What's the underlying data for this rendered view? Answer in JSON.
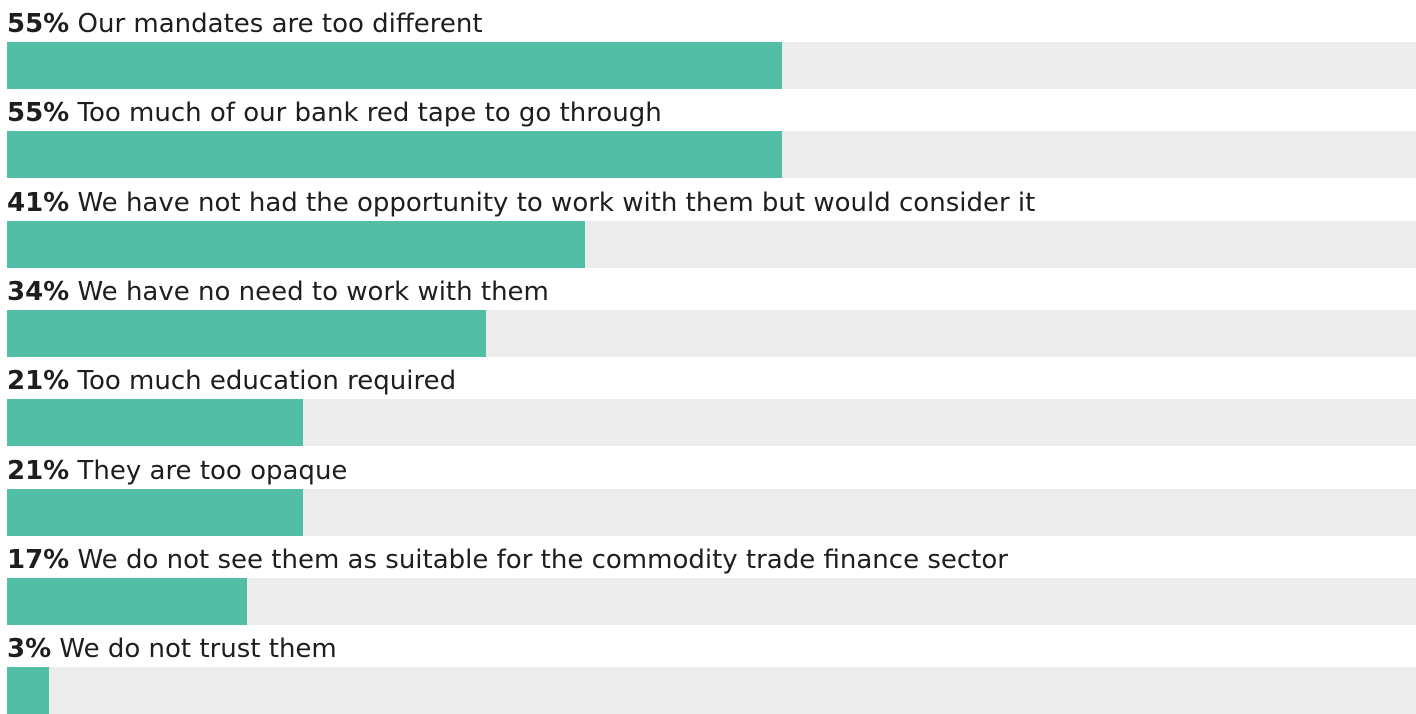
{
  "chart_data": {
    "type": "bar",
    "orientation": "horizontal",
    "value_suffix": "%",
    "xlim": [
      0,
      100
    ],
    "bar_color": "#52bea5",
    "track_color": "#ececec",
    "grid": false,
    "legend": "none",
    "categories": [
      "Our mandates are too different",
      "Too much of our bank red tape to go through",
      "We have not had the opportunity to work with them but would consider it",
      "We have no need to work with them",
      "Too much education required",
      "They are too opaque",
      "We do not see them as suitable for the commodity trade finance sector",
      "We do not trust them"
    ],
    "values": [
      55,
      55,
      41,
      34,
      21,
      21,
      17,
      3
    ],
    "value_labels": [
      "55%",
      "55%",
      "41%",
      "34%",
      "21%",
      "21%",
      "17%",
      "3%"
    ]
  }
}
